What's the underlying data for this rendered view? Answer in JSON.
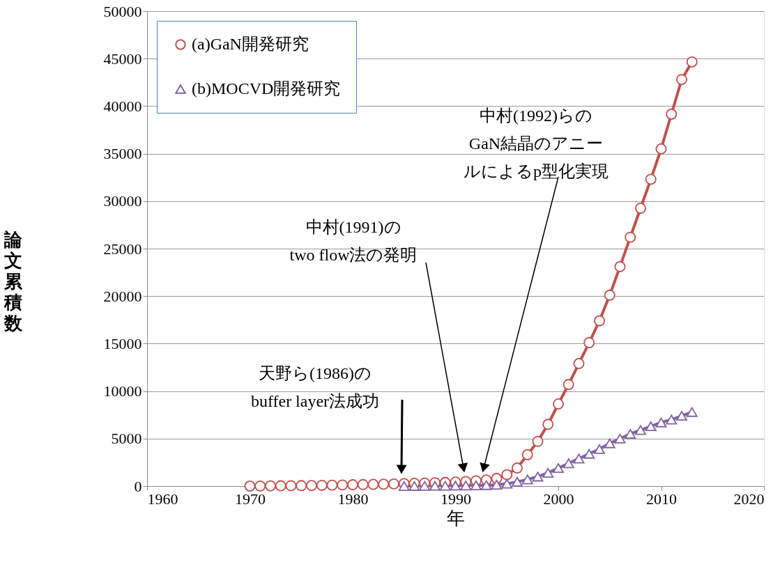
{
  "chart_data": {
    "type": "line",
    "xlabel": "年",
    "ylabel": "論文累積数",
    "xlim": [
      1960,
      2020
    ],
    "xticks": [
      1960,
      1970,
      1980,
      1990,
      2000,
      2010,
      2020
    ],
    "ylim": [
      0,
      50000
    ],
    "yticks": [
      0,
      5000,
      10000,
      15000,
      20000,
      25000,
      30000,
      35000,
      40000,
      45000,
      50000
    ],
    "grid": "y",
    "legend": "top left",
    "line_style": "solid",
    "series": [
      {
        "name": "(a)GaN開発研究",
        "color": "#c0504d",
        "marker": "circle",
        "x": [
          1970,
          1971,
          1972,
          1973,
          1974,
          1975,
          1976,
          1977,
          1978,
          1979,
          1980,
          1981,
          1982,
          1983,
          1984,
          1985,
          1986,
          1987,
          1988,
          1989,
          1990,
          1991,
          1992,
          1993,
          1994,
          1995,
          1996,
          1997,
          1998,
          1999,
          2000,
          2001,
          2002,
          2003,
          2004,
          2005,
          2006,
          2007,
          2008,
          2009,
          2010,
          2011,
          2012,
          2013
        ],
        "values": [
          0,
          10,
          20,
          30,
          40,
          50,
          60,
          80,
          100,
          120,
          140,
          160,
          180,
          200,
          230,
          260,
          290,
          320,
          350,
          380,
          420,
          480,
          560,
          650,
          800,
          1200,
          1900,
          3300,
          4700,
          6500,
          8650,
          10700,
          12900,
          15100,
          17400,
          20100,
          23100,
          26200,
          29250,
          32300,
          35500,
          39150,
          42800,
          44650
        ]
      },
      {
        "name": "(b)MOCVD開発研究",
        "color": "#8064a2",
        "marker": "triangle",
        "x": [
          1985,
          1986,
          1987,
          1988,
          1989,
          1990,
          1991,
          1992,
          1993,
          1994,
          1995,
          1996,
          1997,
          1998,
          1999,
          2000,
          2001,
          2002,
          2003,
          2004,
          2005,
          2006,
          2007,
          2008,
          2009,
          2010,
          2011,
          2012,
          2013
        ],
        "values": [
          0,
          10,
          20,
          30,
          40,
          50,
          60,
          80,
          100,
          150,
          250,
          450,
          700,
          1000,
          1400,
          1900,
          2400,
          2900,
          3400,
          3900,
          4500,
          5000,
          5500,
          5900,
          6300,
          6700,
          7000,
          7400,
          7800
        ]
      }
    ],
    "annotations": [
      "天野ら(1986)の\nbuffer layer法成功",
      "中村(1991)の\ntwo flow法の発明",
      "中村(1992)らの\nGaN結晶のアニールによるp型化実現"
    ]
  }
}
